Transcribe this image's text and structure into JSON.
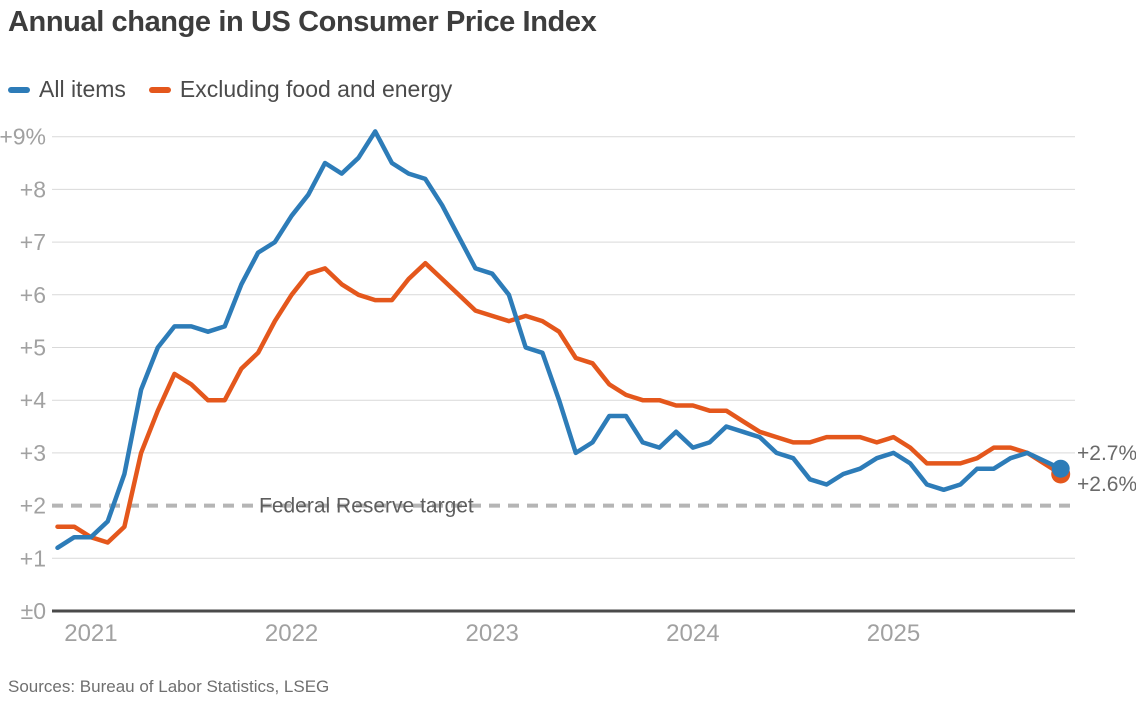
{
  "title": "Annual change in US Consumer Price Index",
  "source": "Sources: Bureau of Labor Statistics, LSEG",
  "chart_data": {
    "type": "line",
    "title": "Annual change in US Consumer Price Index",
    "frequency": "monthly",
    "x_start_month": "2020-11",
    "x_end_month": "2025-11",
    "points": 61,
    "ylim": [
      0,
      9.3
    ],
    "grid": true,
    "legend_position": "top-left",
    "ylabel": "",
    "xlabel": "",
    "target_line": {
      "value": 2,
      "label": "Federal Reserve target"
    },
    "y_ticks": [
      {
        "value": 9,
        "label": "+9%"
      },
      {
        "value": 8,
        "label": "+8"
      },
      {
        "value": 7,
        "label": "+7"
      },
      {
        "value": 6,
        "label": "+6"
      },
      {
        "value": 5,
        "label": "+5"
      },
      {
        "value": 4,
        "label": "+4"
      },
      {
        "value": 3,
        "label": "+3"
      },
      {
        "value": 2,
        "label": "+2"
      },
      {
        "value": 1,
        "label": "+1"
      },
      {
        "value": 0,
        "label": "±0"
      }
    ],
    "x_ticks": [
      {
        "month_index": 2,
        "label": "2021"
      },
      {
        "month_index": 14,
        "label": "2022"
      },
      {
        "month_index": 26,
        "label": "2023"
      },
      {
        "month_index": 38,
        "label": "2024"
      },
      {
        "month_index": 50,
        "label": "2025"
      }
    ],
    "series": [
      {
        "name": "All items",
        "color": "#2d7cb8",
        "end_label": "+2.7%",
        "values": [
          1.2,
          1.4,
          1.4,
          1.7,
          2.6,
          4.2,
          5.0,
          5.4,
          5.4,
          5.3,
          5.4,
          6.2,
          6.8,
          7.0,
          7.5,
          7.9,
          8.5,
          8.3,
          8.6,
          9.1,
          8.5,
          8.3,
          8.2,
          7.7,
          7.1,
          6.5,
          6.4,
          6.0,
          5.0,
          4.9,
          4.0,
          3.0,
          3.2,
          3.7,
          3.7,
          3.2,
          3.1,
          3.4,
          3.1,
          3.2,
          3.5,
          3.4,
          3.3,
          3.0,
          2.9,
          2.5,
          2.4,
          2.6,
          2.7,
          2.9,
          3.0,
          2.8,
          2.4,
          2.3,
          2.4,
          2.7,
          2.7,
          2.9,
          3.0,
          null,
          2.7
        ]
      },
      {
        "name": "Excluding food and energy",
        "color": "#e4571c",
        "end_label": "+2.6%",
        "values": [
          1.6,
          1.6,
          1.4,
          1.3,
          1.6,
          3.0,
          3.8,
          4.5,
          4.3,
          4.0,
          4.0,
          4.6,
          4.9,
          5.5,
          6.0,
          6.4,
          6.5,
          6.2,
          6.0,
          5.9,
          5.9,
          6.3,
          6.6,
          6.3,
          6.0,
          5.7,
          5.6,
          5.5,
          5.6,
          5.5,
          5.3,
          4.8,
          4.7,
          4.3,
          4.1,
          4.0,
          4.0,
          3.9,
          3.9,
          3.8,
          3.8,
          3.6,
          3.4,
          3.3,
          3.2,
          3.2,
          3.3,
          3.3,
          3.3,
          3.2,
          3.3,
          3.1,
          2.8,
          2.8,
          2.8,
          2.9,
          3.1,
          3.1,
          3.0,
          null,
          2.6
        ]
      }
    ]
  }
}
